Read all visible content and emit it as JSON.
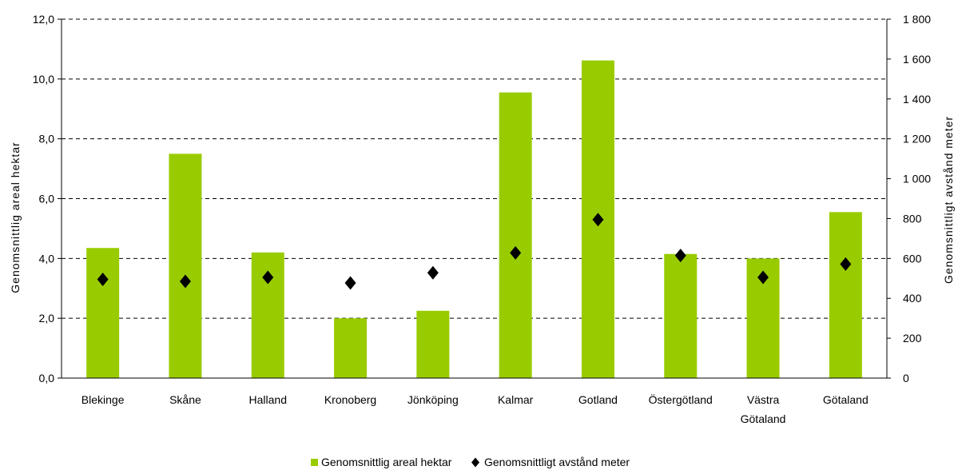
{
  "chart_data": {
    "type": "bar",
    "categories": [
      [
        "Blekinge"
      ],
      [
        "Skåne"
      ],
      [
        "Halland"
      ],
      [
        "Kronoberg"
      ],
      [
        "Jönköping"
      ],
      [
        "Kalmar"
      ],
      [
        "Gotland"
      ],
      [
        "Östergötland"
      ],
      [
        "Västra",
        "Götaland"
      ],
      [
        "Götaland"
      ]
    ],
    "series": [
      {
        "name": "Genomsnittlig areal hektar",
        "kind": "bar",
        "axis": "left",
        "color": "#99CC00",
        "values": [
          4.35,
          7.5,
          4.2,
          2.0,
          2.25,
          9.55,
          10.62,
          4.15,
          4.0,
          5.55
        ]
      },
      {
        "name": "Genomsnittligt avstånd meter",
        "kind": "scatter",
        "marker": "diamond",
        "axis": "right",
        "color": "#000000",
        "values": [
          495,
          485,
          505,
          477,
          528,
          628,
          795,
          615,
          505,
          572
        ]
      }
    ],
    "ylabel_left": "Genomsnittlig areal hektar",
    "ylabel_right": "Genomsnittligt avstånd meter",
    "ylim_left": [
      0,
      12
    ],
    "ylim_right": [
      0,
      1800
    ],
    "yticks_left": [
      "0,0",
      "2,0",
      "4,0",
      "6,0",
      "8,0",
      "10,0",
      "12,0"
    ],
    "yticks_right": [
      "0",
      "200",
      "400",
      "600",
      "800",
      "1 000",
      "1 200",
      "1 400",
      "1 600",
      "1 800"
    ],
    "grid": "dashed-horizontal",
    "legend_position": "bottom"
  }
}
